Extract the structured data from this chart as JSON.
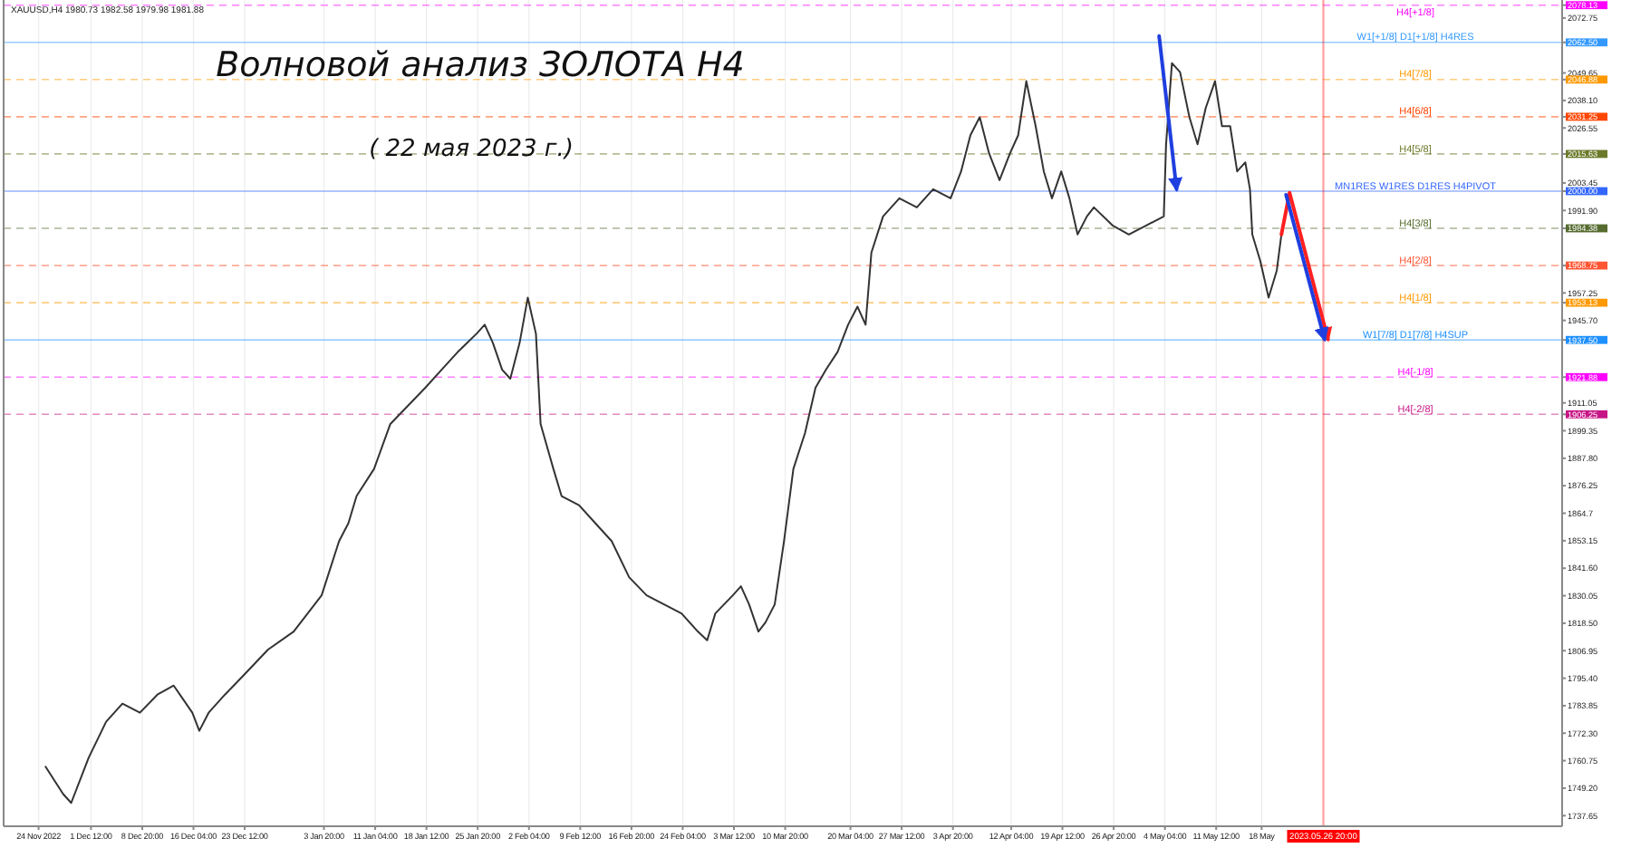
{
  "chart_data": {
    "type": "line",
    "title": "Волновой анализ ЗОЛОТА H4",
    "subtitle": "( 22 мая 2023 г.)",
    "annotations": [
      "XAUUSD,H4 1980.73 1982.58 1979.98 1981.88"
    ],
    "xlim": [
      "2022-11-19T00:00",
      "2023-06-30T00:00"
    ],
    "ylim": [
      1733.2,
      2080.3
    ],
    "xticks": [
      {
        "value": "2022-11-24T00:00",
        "label": "24 Nov 2022"
      },
      {
        "value": "2022-12-01T12:00",
        "label": "1 Dec 12:00"
      },
      {
        "value": "2022-12-08T20:00",
        "label": "8 Dec 20:00"
      },
      {
        "value": "2022-12-16T04:00",
        "label": "16 Dec 04:00"
      },
      {
        "value": "2022-12-23T12:00",
        "label": "23 Dec 12:00"
      },
      {
        "value": "2023-01-03T20:00",
        "label": "3 Jan 20:00"
      },
      {
        "value": "2023-01-11T04:00",
        "label": "11 Jan 04:00"
      },
      {
        "value": "2023-01-18T12:00",
        "label": "18 Jan 12:00"
      },
      {
        "value": "2023-01-25T20:00",
        "label": "25 Jan 20:00"
      },
      {
        "value": "2023-02-02T04:00",
        "label": "2 Feb 04:00"
      },
      {
        "value": "2023-02-09T12:00",
        "label": "9 Feb 12:00"
      },
      {
        "value": "2023-02-16T20:00",
        "label": "16 Feb 20:00"
      },
      {
        "value": "2023-02-24T04:00",
        "label": "24 Feb 04:00"
      },
      {
        "value": "2023-03-03T12:00",
        "label": "3 Mar 12:00"
      },
      {
        "value": "2023-03-10T20:00",
        "label": "10 Mar 20:00"
      },
      {
        "value": "2023-03-20T04:00",
        "label": "20 Mar 04:00"
      },
      {
        "value": "2023-03-27T12:00",
        "label": "27 Mar 12:00"
      },
      {
        "value": "2023-04-03T20:00",
        "label": "3 Apr 20:00"
      },
      {
        "value": "2023-04-12T04:00",
        "label": "12 Apr 04:00"
      },
      {
        "value": "2023-04-19T12:00",
        "label": "19 Apr 12:00"
      },
      {
        "value": "2023-04-26T20:00",
        "label": "26 Apr 20:00"
      },
      {
        "value": "2023-05-04T04:00",
        "label": "4 May 04:00"
      },
      {
        "value": "2023-05-11T12:00",
        "label": "11 May 12:00"
      },
      {
        "value": "2023-05-18T00:00",
        "label": "18 May"
      }
    ],
    "yticks": [
      {
        "value": 2078.13,
        "label": "2078.13"
      },
      2072.75,
      {
        "value": 2062.5,
        "label": "2062.50"
      },
      2049.65,
      {
        "value": 2046.88,
        "label": "2046.88"
      },
      {
        "value": 2038.1,
        "label": "2038.10"
      },
      {
        "value": 2031.25,
        "label": "2031.25"
      },
      2026.55,
      {
        "value": 2015.63,
        "label": "2015.63"
      },
      2003.45,
      {
        "value": 2000.0,
        "label": "2000.00"
      },
      {
        "value": 1991.9,
        "label": "1991.90"
      },
      {
        "value": 1984.38,
        "label": "1984.38"
      },
      {
        "value": 1968.75,
        "label": "1968.75"
      },
      1957.25,
      {
        "value": 1953.13,
        "label": "1953.13"
      },
      {
        "value": 1945.7,
        "label": "1945.70"
      },
      {
        "value": 1937.5,
        "label": "1937.50"
      },
      {
        "value": 1921.88,
        "label": "1921.88"
      },
      1911.05,
      {
        "value": 1906.25,
        "label": "1906.25"
      },
      1899.35,
      {
        "value": 1887.8,
        "label": "1887.80"
      },
      1876.25,
      1864.7,
      1853.15,
      {
        "value": 1841.6,
        "label": "1841.60"
      },
      1830.05,
      {
        "value": 1818.5,
        "label": "1818.50"
      },
      1806.95,
      {
        "value": 1795.4,
        "label": "1795.40"
      },
      1783.85,
      {
        "value": 1772.3,
        "label": "1772.30"
      },
      1760.75,
      {
        "value": 1749.2,
        "label": "1749.20"
      },
      1737.65
    ],
    "grid": "x",
    "marker": "none",
    "line_style": "solid",
    "series": [
      {
        "color": "#333333",
        "x": [
          "2022-11-25T00:00",
          "2022-11-27T12:00",
          "2022-11-28T16:00",
          "2022-12-01T04:00",
          "2022-12-03T16:00",
          "2022-12-06T00:00",
          "2022-12-08T12:00",
          "2022-12-11T00:00",
          "2022-12-13T08:00",
          "2022-12-16T00:00",
          "2022-12-17T00:00",
          "2022-12-18T08:00",
          "2022-12-20T16:00",
          "2022-12-23T04:00",
          "2022-12-26T20:00",
          "2022-12-30T12:00",
          "2023-01-03T12:00",
          "2023-01-06T00:00",
          "2023-01-07T08:00",
          "2023-01-08T12:00",
          "2023-01-11T00:00",
          "2023-01-13T08:00",
          "2023-01-15T20:00",
          "2023-01-18T08:00",
          "2023-01-20T16:00",
          "2023-01-23T00:00",
          "2023-01-25T16:00",
          "2023-01-26T20:00",
          "2023-01-28T00:00",
          "2023-01-29T08:00",
          "2023-01-30T12:00",
          "2023-01-31T20:00",
          "2023-02-02T00:00",
          "2023-02-03T04:00",
          "2023-02-03T20:00",
          "2023-02-05T16:00",
          "2023-02-06T20:00",
          "2023-02-09T08:00",
          "2023-02-11T16:00",
          "2023-02-14T00:00",
          "2023-02-16T12:00",
          "2023-02-19T00:00",
          "2023-02-21T12:00",
          "2023-02-24T00:00",
          "2023-02-26T08:00",
          "2023-02-27T16:00",
          "2023-02-28T20:00",
          "2023-03-03T08:00",
          "2023-03-04T12:00",
          "2023-03-05T16:00",
          "2023-03-07T00:00",
          "2023-03-08T00:00",
          "2023-03-09T08:00",
          "2023-03-10T16:00",
          "2023-03-12T00:00",
          "2023-03-13T16:00",
          "2023-03-15T04:00",
          "2023-03-16T16:00",
          "2023-03-18T08:00",
          "2023-03-19T20:00",
          "2023-03-21T04:00",
          "2023-03-22T08:00",
          "2023-03-23T04:00",
          "2023-03-24T20:00",
          "2023-03-27T04:00",
          "2023-03-29T16:00",
          "2023-04-01T00:00",
          "2023-04-03T12:00",
          "2023-04-05T00:00",
          "2023-04-06T08:00",
          "2023-04-07T16:00",
          "2023-04-09T00:00",
          "2023-04-10T12:00",
          "2023-04-12T00:00",
          "2023-04-13T04:00",
          "2023-04-14T08:00",
          "2023-04-15T16:00",
          "2023-04-16T20:00",
          "2023-04-18T00:00",
          "2023-04-19T08:00",
          "2023-04-20T12:00",
          "2023-04-21T16:00",
          "2023-04-23T00:00",
          "2023-04-24T00:00",
          "2023-04-26T16:00",
          "2023-04-29T00:00",
          "2023-05-01T12:00",
          "2023-05-04T00:00",
          "2023-05-04T08:00",
          "2023-05-05T04:00",
          "2023-05-06T08:00",
          "2023-05-07T16:00",
          "2023-05-08T20:00",
          "2023-05-10T00:00",
          "2023-05-11T08:00",
          "2023-05-12T08:00",
          "2023-05-13T12:00",
          "2023-05-14T12:00",
          "2023-05-15T16:00",
          "2023-05-16T08:00",
          "2023-05-16T16:00",
          "2023-05-17T20:00",
          "2023-05-19T00:00",
          "2023-05-20T04:00",
          "2023-05-20T20:00"
        ],
        "values": [
          1758.2,
          1746.8,
          1743.0,
          1762.0,
          1777.1,
          1784.7,
          1780.9,
          1788.5,
          1792.3,
          1780.9,
          1773.3,
          1780.9,
          1788.5,
          1796.1,
          1807.4,
          1815.0,
          1830.2,
          1853.0,
          1860.5,
          1871.9,
          1883.3,
          1902.2,
          1909.8,
          1917.4,
          1925.0,
          1932.5,
          1940.1,
          1943.9,
          1936.3,
          1925.0,
          1921.2,
          1936.3,
          1955.3,
          1940.1,
          1902.2,
          1883.3,
          1871.9,
          1868.1,
          1860.5,
          1853.0,
          1837.8,
          1830.2,
          1826.4,
          1822.6,
          1815.0,
          1811.3,
          1822.6,
          1830.2,
          1834.0,
          1826.4,
          1815.0,
          1818.8,
          1826.4,
          1853.0,
          1883.3,
          1898.4,
          1917.4,
          1925.0,
          1932.5,
          1943.9,
          1951.5,
          1943.9,
          1974.2,
          1989.4,
          1997.0,
          1993.2,
          2000.8,
          1997.0,
          2008.3,
          2023.5,
          2031.1,
          2015.9,
          2004.6,
          2015.9,
          2023.5,
          2046.2,
          2027.3,
          2008.3,
          1997.0,
          2008.3,
          1997.0,
          1981.8,
          1989.4,
          1993.2,
          1985.6,
          1981.8,
          1985.6,
          1989.4,
          2019.7,
          2053.8,
          2050.0,
          2031.1,
          2019.7,
          2034.9,
          2046.2,
          2027.3,
          2027.3,
          2008.3,
          2012.1,
          2000.8,
          1981.8,
          1970.4,
          1955.3,
          1966.6,
          1981.8
        ]
      },
      {
        "color": "#1f3fdf",
        "x": [
          "2023-05-03T08:00",
          "2023-05-05T20:00"
        ],
        "values": [
          2065.2,
          2000.8
        ]
      },
      {
        "color": "#ff2020",
        "x": [
          "2023-05-20T20:00",
          "2023-05-22T00:00",
          "2023-05-27T12:00"
        ],
        "values": [
          1981.8,
          1999.3,
          1937.8
        ]
      },
      {
        "color": "#1f3fdf",
        "x": [
          "2023-05-21T12:00",
          "2023-05-27T00:00"
        ],
        "values": [
          1998.5,
          1937.8
        ]
      }
    ],
    "ref_lines": [
      {
        "axis": "y",
        "value": 2078.13,
        "label": "H4[+1/8]",
        "color": "#ff00ff",
        "line_style": "dashed"
      },
      {
        "axis": "y",
        "value": 2062.5,
        "label": "W1[+1/8] D1[+1/8] H4RES",
        "color": "#3399ff",
        "line_style": "solid"
      },
      {
        "axis": "y",
        "value": 2046.88,
        "label": "H4[7/8]",
        "color": "#ff9900",
        "line_style": "dashed"
      },
      {
        "axis": "y",
        "value": 2031.25,
        "label": "H4[6/8]",
        "color": "#ff4500",
        "line_style": "dashed"
      },
      {
        "axis": "y",
        "value": 2015.63,
        "label": "H4[5/8]",
        "color": "#6b7a2a",
        "line_style": "dashed"
      },
      {
        "axis": "y",
        "value": 2000.0,
        "label": "MN1RES W1RES D1RES H4PIVOT",
        "color": "#3366ff",
        "line_style": "solid"
      },
      {
        "axis": "y",
        "value": 1984.38,
        "label": "H4[3/8]",
        "color": "#556b2f",
        "line_style": "dashed"
      },
      {
        "axis": "y",
        "value": 1968.75,
        "label": "H4[2/8]",
        "color": "#ff5533",
        "line_style": "dashed"
      },
      {
        "axis": "y",
        "value": 1953.13,
        "label": "H4[1/8]",
        "color": "#ff9900",
        "line_style": "dashed"
      },
      {
        "axis": "y",
        "value": 1937.5,
        "label": "W1[7/8] D1[7/8] H4SUP",
        "color": "#1e90ff",
        "line_style": "solid"
      },
      {
        "axis": "y",
        "value": 1921.88,
        "label": "H4[-1/8]",
        "color": "#ff00ff",
        "line_style": "dashed"
      },
      {
        "axis": "y",
        "value": 1906.25,
        "label": "H4[-2/8]",
        "color": "#c71585",
        "line_style": "dashed"
      },
      {
        "axis": "x",
        "value": "2023-05-26T20:00",
        "label": "2023.05.26 20:00",
        "color": "#ff0000",
        "line_style": "solid"
      }
    ]
  }
}
